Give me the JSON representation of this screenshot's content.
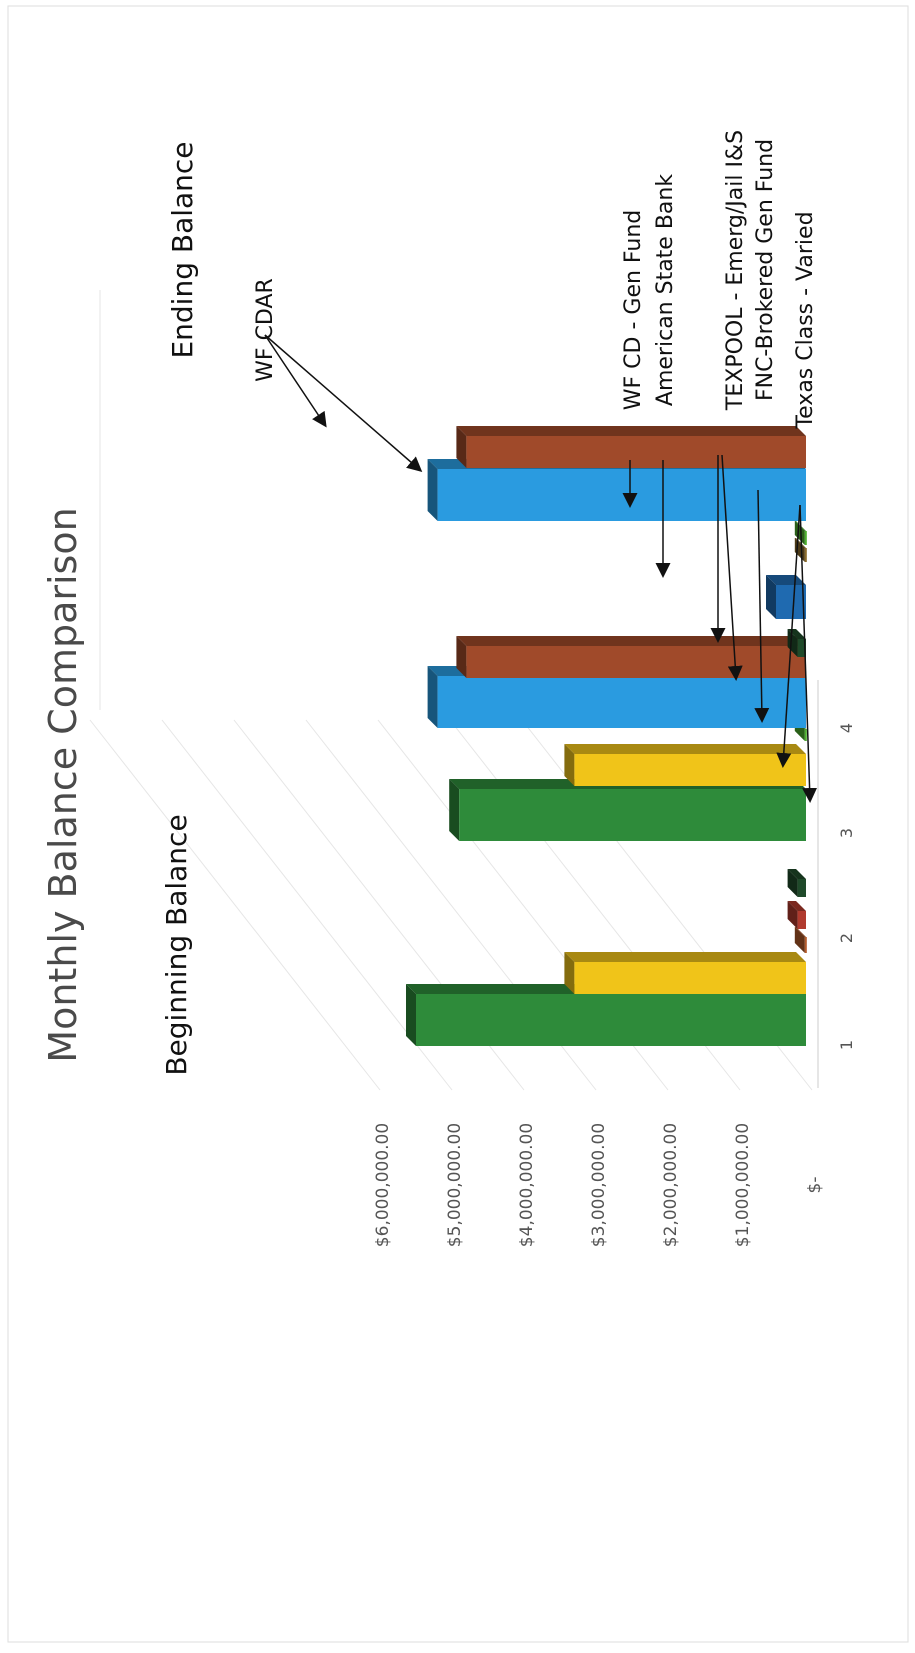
{
  "chart_data": {
    "type": "bar",
    "title": "Monthly Balance Comparison",
    "group_labels": [
      "Beginning Balance",
      "Ending Balance"
    ],
    "categories": [
      "1",
      "2",
      "3",
      "4"
    ],
    "y_ticks": [
      "$6,000,000.00",
      "$5,000,000.00",
      "$4,000,000.00",
      "$3,000,000.00",
      "$2,000,000.00",
      "$1,000,000.00",
      "$-"
    ],
    "ylim": [
      0,
      6000000
    ],
    "bars": [
      {
        "group": "Beginning Balance",
        "category": "1",
        "color": "#2e8b3a",
        "value": 5500000
      },
      {
        "group": "Beginning Balance",
        "category": "1",
        "color": "#f0c419",
        "value": 3300000
      },
      {
        "group": "Beginning Balance",
        "category": "2",
        "color": "#b35a2a",
        "value": 100000
      },
      {
        "group": "Beginning Balance",
        "category": "2",
        "color": "#b03a2e",
        "value": 200000
      },
      {
        "group": "Beginning Balance",
        "category": "2",
        "color": "#1f4a2a",
        "value": 200000
      },
      {
        "group": "Beginning Balance",
        "category": "3",
        "color": "#2e8b3a",
        "value": 4900000
      },
      {
        "group": "Beginning Balance",
        "category": "3",
        "color": "#f0c419",
        "value": 3300000
      },
      {
        "group": "Beginning Balance",
        "category": "3",
        "color": "#4caf2e",
        "value": 100000
      },
      {
        "group": "Beginning Balance",
        "category": "4",
        "color": "#2a9be0",
        "value": 5200000
      },
      {
        "group": "Beginning Balance",
        "category": "4",
        "color": "#a04a2a",
        "value": 4800000
      },
      {
        "group": "Ending Balance",
        "category": "1",
        "color": "#4caf2e",
        "value": 100000
      },
      {
        "group": "Ending Balance",
        "category": "2",
        "color": "#8a6a2a",
        "value": 100000
      },
      {
        "group": "Ending Balance",
        "category": "2",
        "color": "#1f6ab0",
        "value": 500000
      },
      {
        "group": "Ending Balance",
        "category": "3",
        "color": "#1f4a2a",
        "value": 200000
      },
      {
        "group": "Ending Balance",
        "category": "4",
        "color": "#2a9be0",
        "value": 5200000
      },
      {
        "group": "Ending Balance",
        "category": "4",
        "color": "#a04a2a",
        "value": 4800000
      }
    ],
    "annotations": [
      "WF CDAR",
      "WF CD - Gen Fund",
      "American State Bank",
      "TEXPOOL - Emerg/Jail I&S",
      "FNC-Brokered Gen Fund",
      "Texas Class - Varied"
    ],
    "grid": true
  }
}
